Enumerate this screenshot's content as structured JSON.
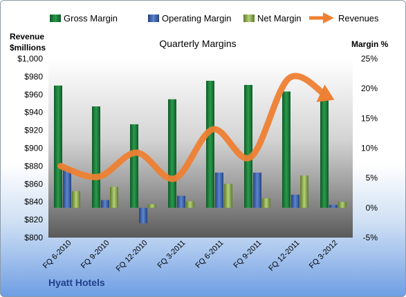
{
  "chart_data": {
    "type": "bar",
    "title": "Quarterly Margins",
    "left_axis_label": [
      "Revenue",
      "$millions"
    ],
    "right_axis_label": "Margin %",
    "categories": [
      "FQ 6-2010",
      "FQ 9-2010",
      "FQ 12-2010",
      "FQ 3-2011",
      "FQ 6-2011",
      "FQ 9-2011",
      "FQ 12-2011",
      "FQ 3-2012"
    ],
    "left_ticks": [
      "$800",
      "$820",
      "$840",
      "$860",
      "$880",
      "$900",
      "$920",
      "$940",
      "$960",
      "$980",
      "$1,000"
    ],
    "right_ticks": [
      "-5%",
      "0%",
      "5%",
      "10%",
      "15%",
      "20%",
      "25%"
    ],
    "ylim_left": [
      800,
      1000
    ],
    "ylim_right": [
      -5,
      25
    ],
    "grid": false,
    "legend_position": "top",
    "series": [
      {
        "name": "Gross Margin",
        "axis": "right",
        "color": "#1e7a3c",
        "values": [
          20.5,
          17.0,
          14.0,
          18.2,
          21.3,
          20.6,
          19.5,
          19.3
        ]
      },
      {
        "name": "Operating Margin",
        "axis": "right",
        "color": "#3f66b0",
        "values": [
          6.7,
          1.3,
          -2.6,
          2.0,
          5.9,
          5.9,
          2.2,
          0.5
        ]
      },
      {
        "name": "Net Margin",
        "axis": "right",
        "color": "#9bbb59",
        "values": [
          2.8,
          3.5,
          0.6,
          1.1,
          4.0,
          1.6,
          5.4,
          1.0
        ]
      },
      {
        "name": "Revenues",
        "axis": "left",
        "color": "#ee8033",
        "values": [
          880,
          868,
          895,
          866,
          921,
          890,
          978,
          958
        ]
      }
    ]
  },
  "footer": {
    "company": "Hyatt Hotels"
  }
}
